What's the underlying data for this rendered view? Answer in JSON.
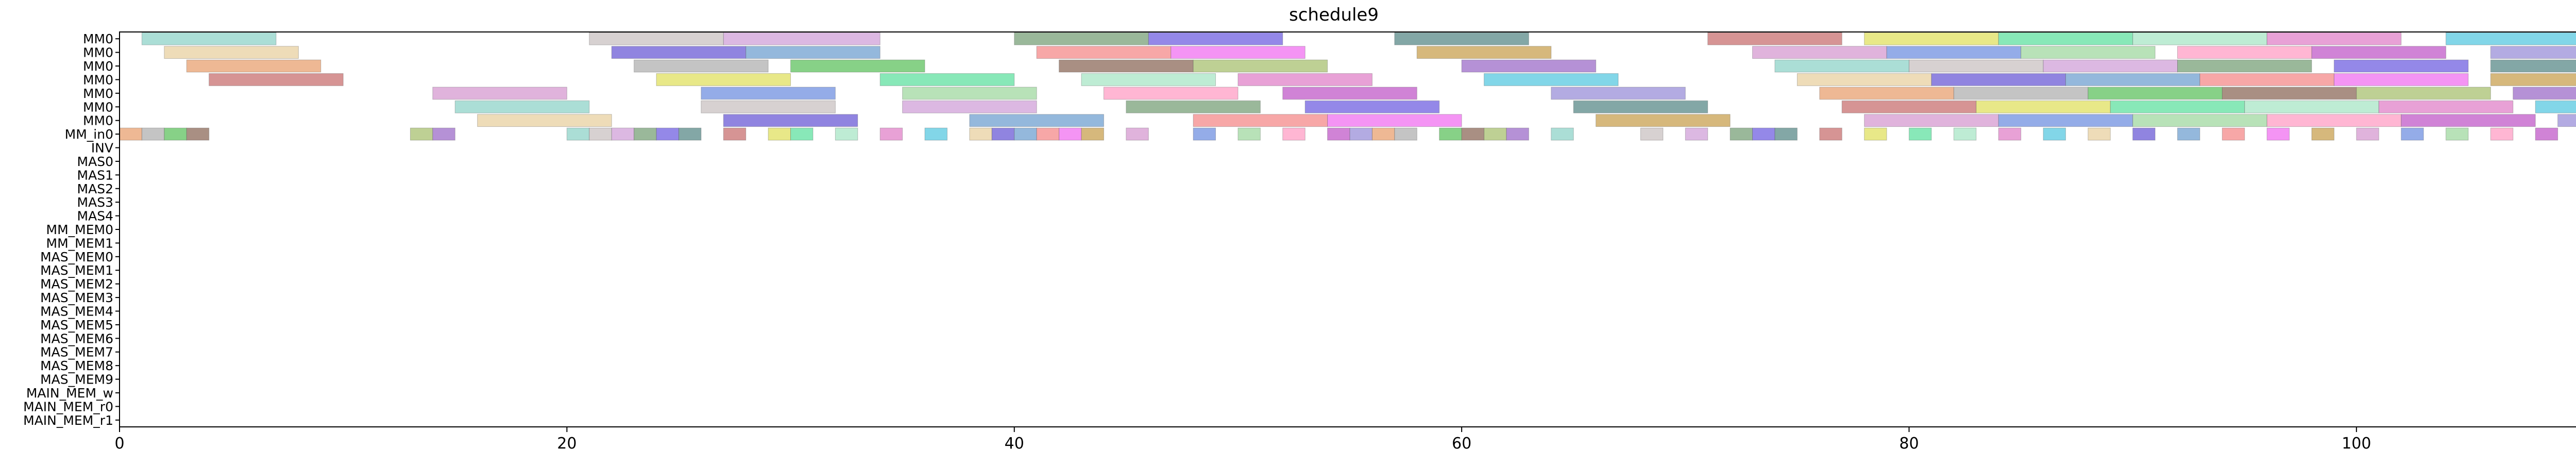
{
  "chart_data": {
    "type": "gantt",
    "title": "schedule9",
    "xlabel": "",
    "ylabel": "",
    "xlim": [
      0,
      113.5
    ],
    "x_ticks": [
      0,
      20,
      40,
      60,
      80,
      100
    ],
    "grid": false,
    "legend": "none",
    "rows": [
      "MM0",
      "MM0",
      "MM0",
      "MM0",
      "MM0",
      "MM0",
      "MM0",
      "MM_in0",
      "INV",
      "MAS0",
      "MAS1",
      "MAS2",
      "MAS3",
      "MAS4",
      "MM_MEM0",
      "MM_MEM1",
      "MAS_MEM0",
      "MAS_MEM1",
      "MAS_MEM2",
      "MAS_MEM3",
      "MAS_MEM4",
      "MAS_MEM5",
      "MAS_MEM6",
      "MAS_MEM7",
      "MAS_MEM8",
      "MAS_MEM9",
      "MAIN_MEM_w",
      "MAIN_MEM_r0",
      "MAIN_MEM_r1"
    ],
    "palette": [
      "#8fd3c8",
      "#6b5bd6",
      "#5fc15f",
      "#a8e6c6",
      "#c05ac8",
      "#5a8a88",
      "#d69ad0",
      "#c9c1c1",
      "#70a0d0",
      "#8c6a5a",
      "#e081c8",
      "#9a8fd8",
      "#c87070",
      "#7090e0",
      "#d0a0d8",
      "#f48a8a",
      "#a8c070",
      "#58c8e0",
      "#e8a070",
      "#e0e060",
      "#a0d8a0",
      "#78a078",
      "#f070f0",
      "#9c6cc8",
      "#e8d0a0",
      "#b0b0b0",
      "#60e0a0",
      "#ff9ec4",
      "#7060e0",
      "#c8a050"
    ],
    "bars": {
      "0": [
        [
          1,
          7
        ],
        [
          21,
          27
        ],
        [
          27,
          34
        ],
        [
          40,
          46
        ],
        [
          46,
          52
        ],
        [
          57,
          63
        ],
        [
          71,
          77
        ],
        [
          78,
          84
        ],
        [
          84,
          90
        ],
        [
          90,
          96
        ],
        [
          96,
          102
        ],
        [
          104,
          110
        ]
      ],
      "1": [
        [
          2,
          8
        ],
        [
          22,
          28
        ],
        [
          28,
          34
        ],
        [
          41,
          47
        ],
        [
          47,
          53
        ],
        [
          58,
          64
        ],
        [
          73,
          79
        ],
        [
          79,
          85
        ],
        [
          85,
          91
        ],
        [
          92,
          98
        ],
        [
          98,
          104
        ],
        [
          106,
          112
        ]
      ],
      "2": [
        [
          3,
          9
        ],
        [
          23,
          29
        ],
        [
          30,
          36
        ],
        [
          42,
          48
        ],
        [
          48,
          54
        ],
        [
          60,
          66
        ],
        [
          74,
          80
        ],
        [
          80,
          86
        ],
        [
          86,
          92
        ],
        [
          92,
          98
        ],
        [
          99,
          105
        ],
        [
          106,
          112
        ]
      ],
      "3": [
        [
          4,
          10
        ],
        [
          24,
          30
        ],
        [
          34,
          40
        ],
        [
          43,
          49
        ],
        [
          50,
          56
        ],
        [
          61,
          67
        ],
        [
          75,
          81
        ],
        [
          81,
          87
        ],
        [
          87,
          93
        ],
        [
          93,
          99
        ],
        [
          99,
          105
        ],
        [
          106,
          112
        ]
      ],
      "4": [
        [
          14,
          20
        ],
        [
          26,
          32
        ],
        [
          35,
          41
        ],
        [
          44,
          50
        ],
        [
          52,
          58
        ],
        [
          64,
          70
        ],
        [
          76,
          82
        ],
        [
          82,
          88
        ],
        [
          88,
          94
        ],
        [
          94,
          100
        ],
        [
          100,
          106
        ],
        [
          107,
          113
        ]
      ],
      "5": [
        [
          15,
          21
        ],
        [
          26,
          32
        ],
        [
          35,
          41
        ],
        [
          45,
          51
        ],
        [
          53,
          59
        ],
        [
          65,
          71
        ],
        [
          77,
          83
        ],
        [
          83,
          89
        ],
        [
          89,
          95
        ],
        [
          95,
          101
        ],
        [
          101,
          107
        ],
        [
          108,
          113
        ]
      ],
      "6": [
        [
          16,
          22
        ],
        [
          27,
          33
        ],
        [
          38,
          44
        ],
        [
          48,
          54
        ],
        [
          54,
          60
        ],
        [
          66,
          72
        ],
        [
          78,
          84
        ],
        [
          84,
          90
        ],
        [
          90,
          96
        ],
        [
          96,
          102
        ],
        [
          102,
          108
        ],
        [
          109,
          113.5
        ]
      ],
      "7": [
        [
          0,
          1
        ],
        [
          1,
          2
        ],
        [
          2,
          3
        ],
        [
          3,
          4
        ],
        [
          13,
          14
        ],
        [
          14,
          15
        ],
        [
          20,
          21
        ],
        [
          21,
          22
        ],
        [
          22,
          23
        ],
        [
          23,
          24
        ],
        [
          24,
          25
        ],
        [
          25,
          26
        ],
        [
          27,
          28
        ],
        [
          29,
          30
        ],
        [
          30,
          31
        ],
        [
          32,
          33
        ],
        [
          34,
          35
        ],
        [
          36,
          37
        ],
        [
          38,
          39
        ],
        [
          39,
          40
        ],
        [
          40,
          41
        ],
        [
          41,
          42
        ],
        [
          42,
          43
        ],
        [
          43,
          44
        ],
        [
          45,
          46
        ],
        [
          48,
          49
        ],
        [
          50,
          51
        ],
        [
          52,
          53
        ],
        [
          54,
          55
        ],
        [
          55,
          56
        ],
        [
          56,
          57
        ],
        [
          57,
          58
        ],
        [
          59,
          60
        ],
        [
          60,
          61
        ],
        [
          61,
          62
        ],
        [
          62,
          63
        ],
        [
          64,
          65
        ],
        [
          68,
          69
        ],
        [
          70,
          71
        ],
        [
          72,
          73
        ],
        [
          73,
          74
        ],
        [
          74,
          75
        ],
        [
          76,
          77
        ],
        [
          78,
          79
        ],
        [
          80,
          81
        ],
        [
          82,
          83
        ],
        [
          84,
          85
        ],
        [
          86,
          87
        ],
        [
          88,
          89
        ],
        [
          90,
          91
        ],
        [
          92,
          93
        ],
        [
          94,
          95
        ],
        [
          96,
          97
        ],
        [
          98,
          99
        ],
        [
          100,
          101
        ],
        [
          102,
          103
        ],
        [
          104,
          105
        ],
        [
          106,
          107
        ],
        [
          108,
          109
        ],
        [
          110,
          111
        ]
      ]
    }
  }
}
